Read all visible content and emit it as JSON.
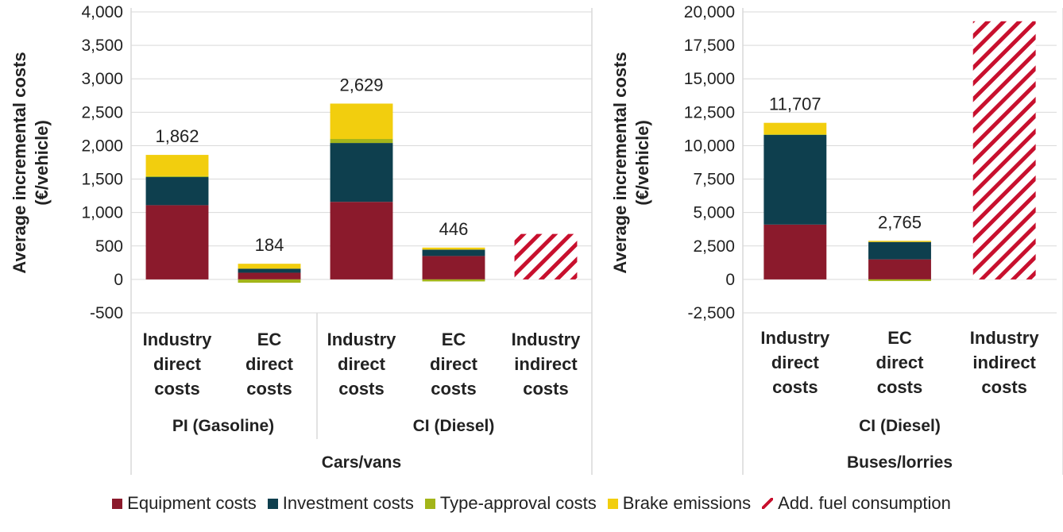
{
  "chart_data": [
    {
      "type": "bar",
      "stacked": true,
      "ylabel": "Average incremental costs (€/vehicle)",
      "ylim": [
        -500,
        4000
      ],
      "yticks": [
        "4,000",
        "3,500",
        "3,000",
        "2,500",
        "2,000",
        "1,500",
        "1,000",
        "500",
        "0",
        "-500"
      ],
      "ytick_values": [
        4000,
        3500,
        3000,
        2500,
        2000,
        1500,
        1000,
        500,
        0,
        -500
      ],
      "grid": true,
      "categories": [
        "Industry direct costs",
        "EC direct costs",
        "Industry direct costs",
        "EC direct costs",
        "Industry indirect costs"
      ],
      "category_lines": [
        [
          "Industry",
          "direct",
          "costs"
        ],
        [
          "EC",
          "direct",
          "costs"
        ],
        [
          "Industry",
          "direct",
          "costs"
        ],
        [
          "EC",
          "direct",
          "costs"
        ],
        [
          "Industry",
          "indirect",
          "costs"
        ]
      ],
      "groups": [
        {
          "label": "PI (Gasoline)",
          "span": [
            0,
            1
          ]
        },
        {
          "label": "CI (Diesel)",
          "span": [
            2,
            4
          ]
        }
      ],
      "supergroup": "Cars/vans",
      "series": [
        {
          "name": "Equipment costs",
          "values": [
            1110,
            100,
            1160,
            350,
            0
          ]
        },
        {
          "name": "Investment costs",
          "values": [
            420,
            60,
            880,
            95,
            0
          ]
        },
        {
          "name": "Type-approval costs",
          "values": [
            15,
            -50,
            60,
            -30,
            0
          ]
        },
        {
          "name": "Brake emissions",
          "values": [
            317,
            74,
            529,
            31,
            0
          ]
        },
        {
          "name": "Add. fuel consumption",
          "values": [
            0,
            0,
            0,
            0,
            680
          ]
        }
      ],
      "totals": [
        "1,862",
        "184",
        "2,629",
        "446",
        ""
      ],
      "total_values": [
        1862,
        184,
        2629,
        446,
        null
      ]
    },
    {
      "type": "bar",
      "stacked": true,
      "ylabel": "Average incremental costs (€/vehicle)",
      "ylim": [
        -2500,
        20000
      ],
      "yticks": [
        "20,000",
        "17,500",
        "15,000",
        "12,500",
        "10,000",
        "7,500",
        "5,000",
        "2,500",
        "0",
        "-2,500"
      ],
      "ytick_values": [
        20000,
        17500,
        15000,
        12500,
        10000,
        7500,
        5000,
        2500,
        0,
        -2500
      ],
      "grid": true,
      "categories": [
        "Industry direct costs",
        "EC direct costs",
        "Industry indirect costs"
      ],
      "category_lines": [
        [
          "Industry",
          "direct",
          "costs"
        ],
        [
          "EC",
          "direct",
          "costs"
        ],
        [
          "Industry",
          "indirect",
          "costs"
        ]
      ],
      "groups": [
        {
          "label": "CI (Diesel)",
          "span": [
            0,
            2
          ]
        }
      ],
      "supergroup": "Buses/lorries",
      "series": [
        {
          "name": "Equipment costs",
          "values": [
            4100,
            1500,
            0
          ]
        },
        {
          "name": "Investment costs",
          "values": [
            6700,
            1300,
            0
          ]
        },
        {
          "name": "Type-approval costs",
          "values": [
            50,
            -120,
            0
          ]
        },
        {
          "name": "Brake emissions",
          "values": [
            857,
            85,
            0
          ]
        },
        {
          "name": "Add. fuel consumption",
          "values": [
            0,
            0,
            19300
          ]
        }
      ],
      "totals": [
        "11,707",
        "2,765",
        ""
      ],
      "total_values": [
        11707,
        2765,
        null
      ]
    }
  ],
  "legend": {
    "placement": "bottom",
    "items": [
      {
        "label": "Equipment costs",
        "color": "#8B1A2C",
        "style": "solid"
      },
      {
        "label": "Investment costs",
        "color": "#0E3F4E",
        "style": "solid"
      },
      {
        "label": "Type-approval costs",
        "color": "#A3B519",
        "style": "solid"
      },
      {
        "label": "Brake emissions",
        "color": "#F2CE0E",
        "style": "solid"
      },
      {
        "label": "Add. fuel consumption",
        "color": "#C8102E",
        "style": "hatched"
      }
    ]
  }
}
